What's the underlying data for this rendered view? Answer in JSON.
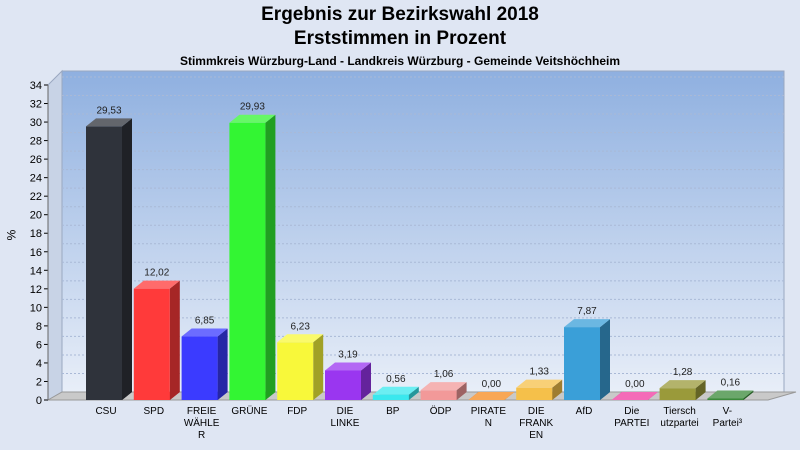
{
  "chart_data": {
    "type": "bar",
    "title": "Ergebnis zur Bezirkswahl 2018",
    "subtitle": "Erststimmen in Prozent",
    "subtitle2": "Stimmkreis Würzburg-Land - Landkreis Würzburg - Gemeinde Veitshöchheim",
    "ylabel": "%",
    "ylim": [
      0,
      34
    ],
    "ytick_step": 2,
    "grid": true,
    "categories": [
      {
        "label": [
          "CSU"
        ],
        "value": 29.53,
        "value_label": "29,53",
        "color": "#2f333b"
      },
      {
        "label": [
          "SPD"
        ],
        "value": 12.02,
        "value_label": "12,02",
        "color": "#ff3a3a"
      },
      {
        "label": [
          "FREIE",
          "WÄHLE",
          "R"
        ],
        "value": 6.85,
        "value_label": "6,85",
        "color": "#3b3bff"
      },
      {
        "label": [
          "GRÜNE"
        ],
        "value": 29.93,
        "value_label": "29,93",
        "color": "#33f533"
      },
      {
        "label": [
          "FDP"
        ],
        "value": 6.23,
        "value_label": "6,23",
        "color": "#f8f83a"
      },
      {
        "label": [
          "DIE",
          "LINKE"
        ],
        "value": 3.19,
        "value_label": "3,19",
        "color": "#9a36f0"
      },
      {
        "label": [
          "BP"
        ],
        "value": 0.56,
        "value_label": "0,56",
        "color": "#3ae8ee"
      },
      {
        "label": [
          "ÖDP"
        ],
        "value": 1.06,
        "value_label": "1,06",
        "color": "#f29999"
      },
      {
        "label": [
          "PIRATE",
          "N"
        ],
        "value": 0.0,
        "value_label": "0,00",
        "color": "#f58a1e"
      },
      {
        "label": [
          "DIE",
          "FRANK",
          "EN"
        ],
        "value": 1.33,
        "value_label": "1,33",
        "color": "#f5c04a"
      },
      {
        "label": [
          "AfD"
        ],
        "value": 7.87,
        "value_label": "7,87",
        "color": "#3a9fd8"
      },
      {
        "label": [
          "Die",
          "PARTEI"
        ],
        "value": 0.0,
        "value_label": "0,00",
        "color": "#f03aa0"
      },
      {
        "label": [
          "Tiersch",
          "utzpartei"
        ],
        "value": 1.28,
        "value_label": "1,28",
        "color": "#9a9a3a"
      },
      {
        "label": [
          "V-",
          "Partei³"
        ],
        "value": 0.16,
        "value_label": "0,16",
        "color": "#3a8a3a"
      }
    ]
  }
}
